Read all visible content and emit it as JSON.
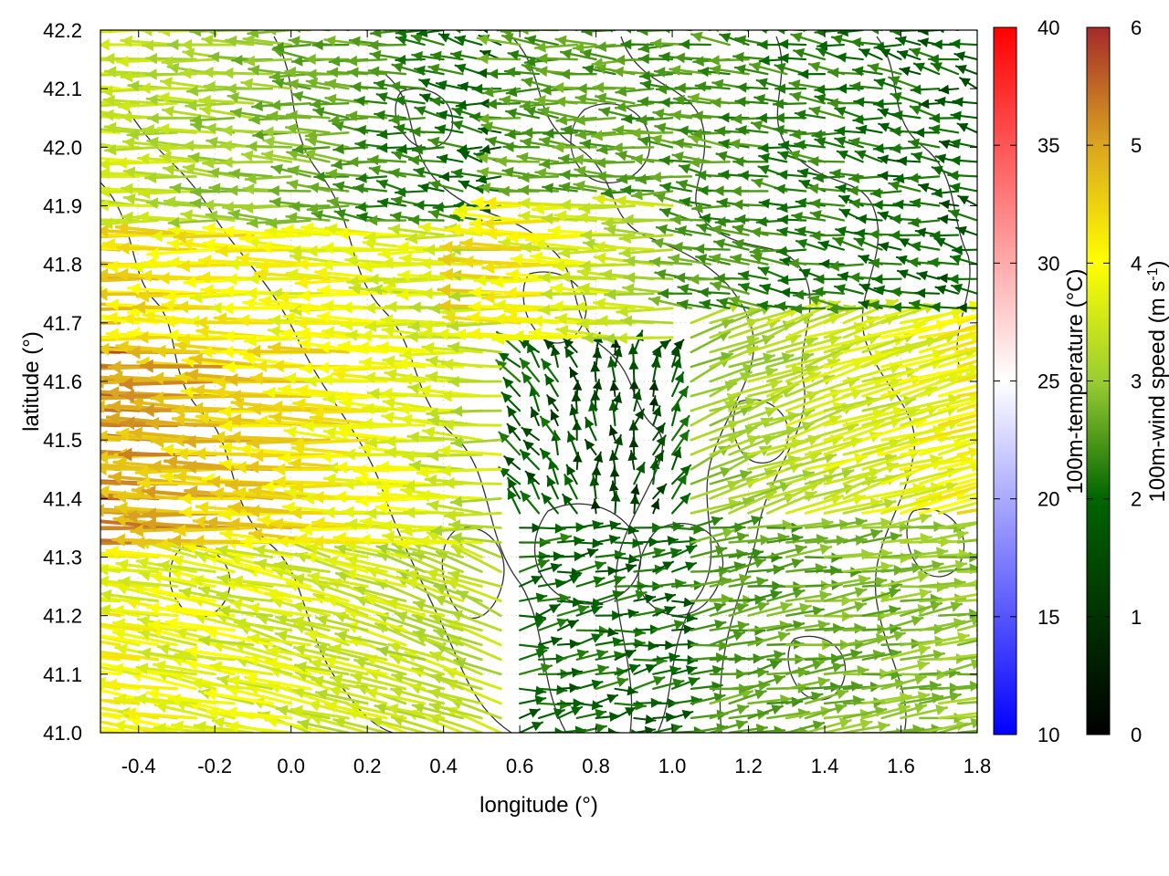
{
  "chart_data": {
    "type": "vector-field",
    "title": "",
    "xlabel": "longitude (°)",
    "ylabel": "latitude (°)",
    "xlim": [
      -0.5,
      1.8
    ],
    "ylim": [
      41.0,
      42.2
    ],
    "x_ticks": [
      -0.4,
      -0.2,
      0.0,
      0.2,
      0.4,
      0.6,
      0.8,
      1.0,
      1.2,
      1.4,
      1.6,
      1.8
    ],
    "x_tick_labels": [
      "-0.4",
      "-0.2",
      "0.0",
      "0.2",
      "0.4",
      "0.6",
      "0.8",
      "1.0",
      "1.2",
      "1.4",
      "1.6",
      "1.8"
    ],
    "y_ticks": [
      41.0,
      41.1,
      41.2,
      41.3,
      41.4,
      41.5,
      41.6,
      41.7,
      41.8,
      41.9,
      42.0,
      42.1,
      42.2
    ],
    "y_tick_labels": [
      "41.0",
      "41.1",
      "41.2",
      "41.3",
      "41.4",
      "41.5",
      "41.6",
      "41.7",
      "41.8",
      "41.9",
      "42.0",
      "42.1",
      "42.2"
    ],
    "grid": true,
    "colorbars": [
      {
        "label": "100m-temperature (°C)",
        "range": [
          10,
          40
        ],
        "ticks": [
          10,
          15,
          20,
          25,
          30,
          35,
          40
        ],
        "tick_labels": [
          "10",
          "15",
          "20",
          "25",
          "30",
          "35",
          "40"
        ],
        "colors": [
          "#0000ff",
          "#ffffff",
          "#ff0000"
        ]
      },
      {
        "label": "100m-wind speed (m s",
        "label_sup": "-1",
        "label_end": ")",
        "range": [
          0,
          6
        ],
        "ticks": [
          0,
          1,
          2,
          3,
          4,
          5,
          6
        ],
        "tick_labels": [
          "0",
          "1",
          "2",
          "3",
          "4",
          "5",
          "6"
        ],
        "colors": [
          "#000000",
          "#006400",
          "#9acd32",
          "#ffff00",
          "#daa520",
          "#a52a2a"
        ]
      }
    ],
    "vector_grid": {
      "lon_step": 0.05,
      "lat_step": 0.025
    },
    "wind_regimes": [
      {
        "region": "west, latitude 41.30–41.65",
        "direction": "westward",
        "speed_range": [
          4.5,
          6.0
        ]
      },
      {
        "region": "west, latitude 41.65–41.85",
        "direction": "westward",
        "speed_range": [
          3.0,
          5.5
        ]
      },
      {
        "region": "north-west coast",
        "direction": "westward",
        "speed_range": [
          2.5,
          4.5
        ]
      },
      {
        "region": "north interior",
        "direction": "westward",
        "speed_range": [
          0.5,
          3.0
        ]
      },
      {
        "region": "south-west, latitude 41.0–41.3",
        "direction": "west-north-westward",
        "speed_range": [
          2.5,
          5.5
        ]
      },
      {
        "region": "south-east interior",
        "direction": "eastward",
        "speed_range": [
          0.5,
          2.5
        ]
      },
      {
        "region": "east interior",
        "direction": "north-eastward",
        "speed_range": [
          1.0,
          4.0
        ]
      }
    ],
    "contours": "terrain elevation contours (dark grey lines)"
  }
}
